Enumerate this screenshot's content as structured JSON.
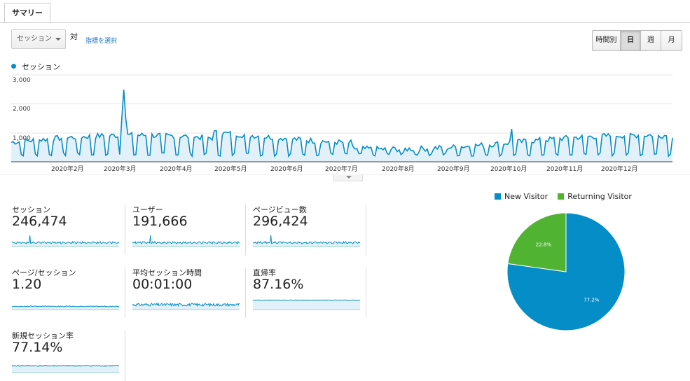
{
  "tab": {
    "label": "サマリー"
  },
  "controls": {
    "metric_dropdown": "セッション",
    "vs_label": "対",
    "select_metric_link": "指標を選択",
    "periods": [
      {
        "label": "時間別",
        "active": false
      },
      {
        "label": "日",
        "active": true
      },
      {
        "label": "週",
        "active": false
      },
      {
        "label": "月",
        "active": false
      }
    ]
  },
  "main_chart": {
    "legend": "セッション",
    "y_ticks": [
      "3,000",
      "2,000",
      "1,000"
    ],
    "x_ticks": [
      "2020年2月",
      "2020年3月",
      "2020年4月",
      "2020年5月",
      "2020年6月",
      "2020年7月",
      "2020年8月",
      "2020年9月",
      "2020年10月",
      "2020年11月",
      "2020年12月"
    ],
    "color": "#058dc7"
  },
  "metrics": [
    {
      "label": "セッション",
      "value": "246,474"
    },
    {
      "label": "ユーザー",
      "value": "191,666"
    },
    {
      "label": "ページビュー数",
      "value": "296,424"
    },
    {
      "label": "ページ/セッション",
      "value": "1.20"
    },
    {
      "label": "平均セッション時間",
      "value": "00:01:00"
    },
    {
      "label": "直帰率",
      "value": "87.16%"
    },
    {
      "label": "新規セッション率",
      "value": "77.14%"
    }
  ],
  "pie": {
    "legend": [
      {
        "label": "New Visitor",
        "color": "#058dc7"
      },
      {
        "label": "Returning Visitor",
        "color": "#50b432"
      }
    ],
    "slices": [
      {
        "label": "77.2%",
        "value": 77.2,
        "color": "#058dc7"
      },
      {
        "label": "22.8%",
        "value": 22.8,
        "color": "#50b432"
      }
    ]
  }
}
